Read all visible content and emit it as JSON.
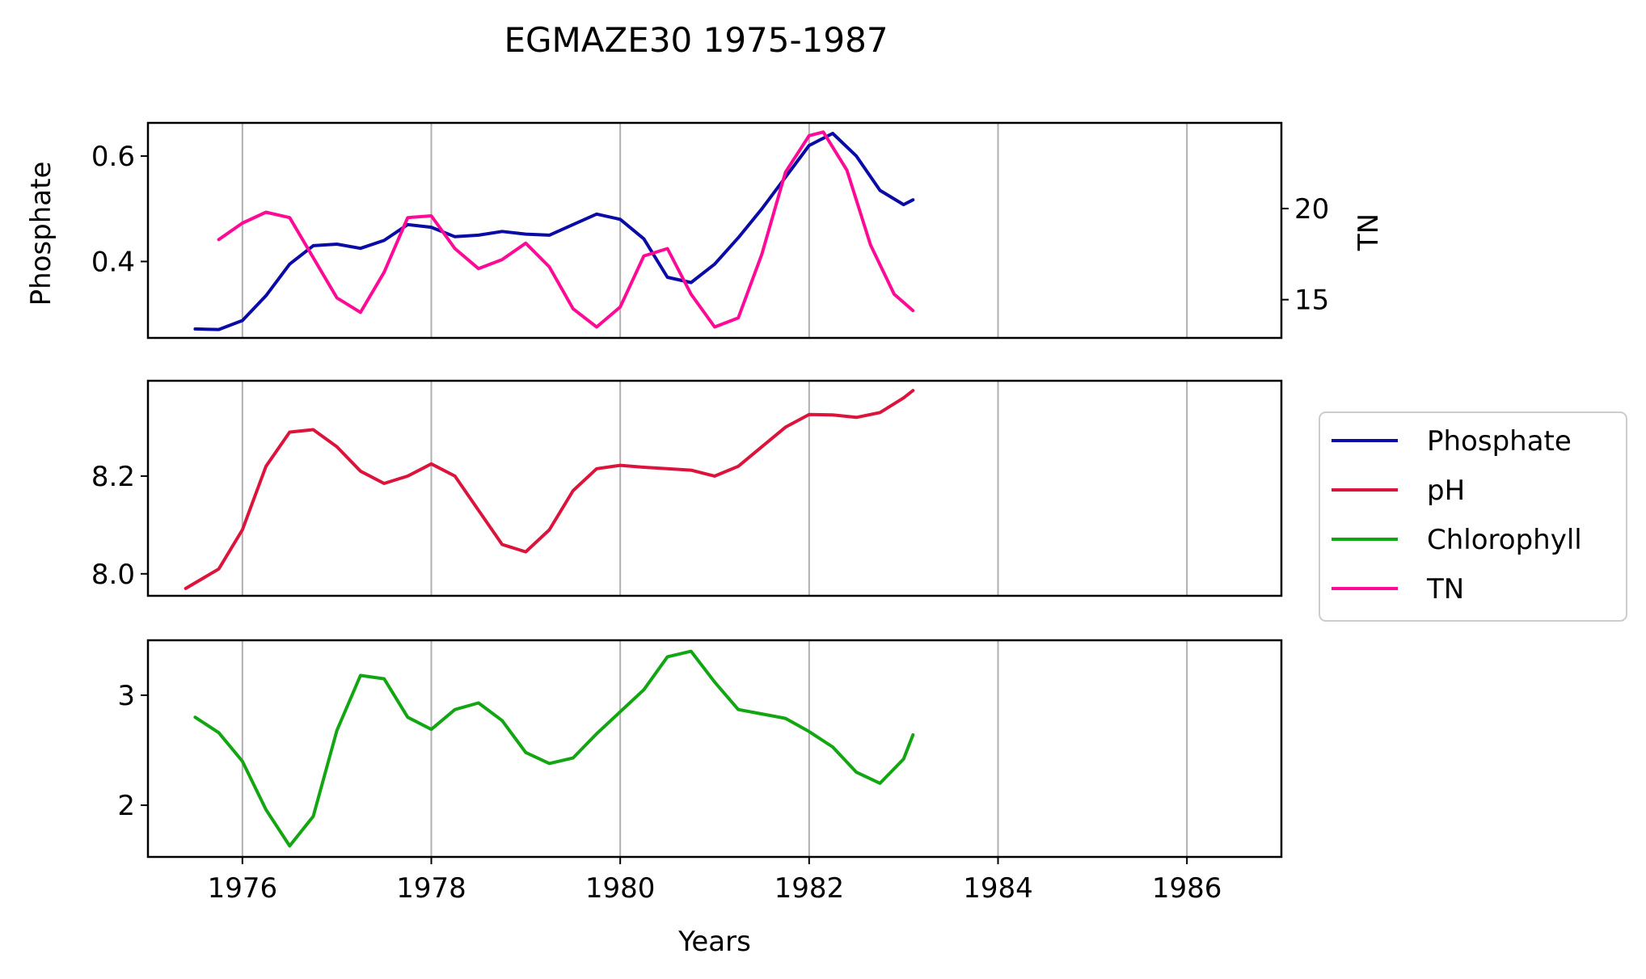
{
  "title": "EGMAZE30 1975-1987",
  "colors": {
    "phosphate": "#0a0aa6",
    "ph": "#dc143c",
    "chlorophyll": "#12a612",
    "tn": "#ff0a96",
    "grid": "#b0b0b0"
  },
  "chart_data": {
    "type": "line",
    "title": "EGMAZE30 1975-1987",
    "xlabel": "Years",
    "xlim": [
      1975,
      1987
    ],
    "xticks": [
      1976,
      1978,
      1980,
      1982,
      1984,
      1986
    ],
    "xtick_labels": [
      "1976",
      "1978",
      "1980",
      "1982",
      "1984",
      "1986"
    ],
    "grid": "vertical",
    "legend": {
      "placement": "right",
      "entries": [
        "Phosphate",
        "pH",
        "Chlorophyll",
        "TN"
      ]
    },
    "panels": [
      {
        "ylabel": "Phosphate",
        "ylim": [
          0.255,
          0.663
        ],
        "yticks": [
          0.4,
          0.6
        ],
        "ytick_labels": [
          "0.4",
          "0.6"
        ],
        "right_axis": {
          "ylabel": "TN",
          "ylim": [
            12.9,
            24.7
          ],
          "yticks": [
            15,
            20
          ],
          "ytick_labels": [
            "15",
            "20"
          ]
        },
        "series": [
          {
            "name": "Phosphate",
            "key": "phosphate",
            "axis": "left",
            "x": [
              1975.5,
              1975.75,
              1976.0,
              1976.25,
              1976.5,
              1976.75,
              1977.0,
              1977.25,
              1977.5,
              1977.75,
              1978.0,
              1978.25,
              1978.5,
              1978.75,
              1979.0,
              1979.25,
              1979.5,
              1979.75,
              1980.0,
              1980.25,
              1980.5,
              1980.75,
              1981.0,
              1981.25,
              1981.5,
              1981.75,
              1982.0,
              1982.25,
              1982.5,
              1982.75,
              1983.0,
              1983.1
            ],
            "y": [
              0.272,
              0.271,
              0.288,
              0.335,
              0.395,
              0.43,
              0.433,
              0.425,
              0.44,
              0.47,
              0.465,
              0.447,
              0.45,
              0.457,
              0.452,
              0.45,
              0.47,
              0.49,
              0.48,
              0.443,
              0.37,
              0.36,
              0.395,
              0.445,
              0.5,
              0.56,
              0.62,
              0.643,
              0.6,
              0.535,
              0.508,
              0.517
            ]
          },
          {
            "name": "TN",
            "key": "tn",
            "axis": "right",
            "x": [
              1975.75,
              1976.0,
              1976.25,
              1976.5,
              1976.75,
              1977.0,
              1977.25,
              1977.5,
              1977.75,
              1978.0,
              1978.25,
              1978.5,
              1978.75,
              1979.0,
              1979.25,
              1979.5,
              1979.75,
              1980.0,
              1980.25,
              1980.5,
              1980.75,
              1981.0,
              1981.25,
              1981.5,
              1981.75,
              1982.0,
              1982.15,
              1982.4,
              1982.65,
              1982.9,
              1983.1
            ],
            "y": [
              18.3,
              19.2,
              19.8,
              19.5,
              17.3,
              15.1,
              14.3,
              16.5,
              19.5,
              19.6,
              17.8,
              16.7,
              17.2,
              18.1,
              16.8,
              14.5,
              13.5,
              14.6,
              17.4,
              17.8,
              15.3,
              13.5,
              14.0,
              17.5,
              22.0,
              24.0,
              24.2,
              22.1,
              18.0,
              15.3,
              14.4
            ]
          }
        ]
      },
      {
        "ylabel": "",
        "ylim": [
          7.955,
          8.395
        ],
        "yticks": [
          8.0,
          8.2
        ],
        "ytick_labels": [
          "8.0",
          "8.2"
        ],
        "series": [
          {
            "name": "pH",
            "key": "ph",
            "axis": "left",
            "x": [
              1975.4,
              1975.75,
              1976.0,
              1976.25,
              1976.5,
              1976.75,
              1977.0,
              1977.25,
              1977.5,
              1977.75,
              1978.0,
              1978.25,
              1978.5,
              1978.75,
              1979.0,
              1979.25,
              1979.5,
              1979.75,
              1980.0,
              1980.25,
              1980.5,
              1980.75,
              1981.0,
              1981.25,
              1981.5,
              1981.75,
              1982.0,
              1982.25,
              1982.5,
              1982.75,
              1983.0,
              1983.1
            ],
            "y": [
              7.97,
              8.01,
              8.09,
              8.22,
              8.29,
              8.295,
              8.26,
              8.21,
              8.185,
              8.2,
              8.225,
              8.2,
              8.13,
              8.06,
              8.045,
              8.09,
              8.17,
              8.215,
              8.222,
              8.218,
              8.215,
              8.212,
              8.2,
              8.22,
              8.26,
              8.3,
              8.326,
              8.325,
              8.32,
              8.33,
              8.36,
              8.375
            ]
          }
        ]
      },
      {
        "ylabel": "",
        "ylim": [
          1.53,
          3.5
        ],
        "yticks": [
          2,
          3
        ],
        "ytick_labels": [
          "2",
          "3"
        ],
        "series": [
          {
            "name": "Chlorophyll",
            "key": "chlorophyll",
            "axis": "left",
            "x": [
              1975.5,
              1975.75,
              1976.0,
              1976.25,
              1976.5,
              1976.75,
              1977.0,
              1977.25,
              1977.5,
              1977.75,
              1978.0,
              1978.25,
              1978.5,
              1978.75,
              1979.0,
              1979.25,
              1979.5,
              1979.75,
              1980.0,
              1980.25,
              1980.5,
              1980.75,
              1981.0,
              1981.25,
              1981.5,
              1981.75,
              1982.0,
              1982.25,
              1982.5,
              1982.75,
              1983.0,
              1983.1
            ],
            "y": [
              2.8,
              2.66,
              2.4,
              1.96,
              1.63,
              1.9,
              2.68,
              3.18,
              3.15,
              2.8,
              2.69,
              2.87,
              2.93,
              2.77,
              2.48,
              2.38,
              2.43,
              2.65,
              2.85,
              3.05,
              3.35,
              3.4,
              3.12,
              2.87,
              2.83,
              2.79,
              2.67,
              2.53,
              2.3,
              2.2,
              2.42,
              2.64
            ]
          }
        ]
      }
    ]
  }
}
